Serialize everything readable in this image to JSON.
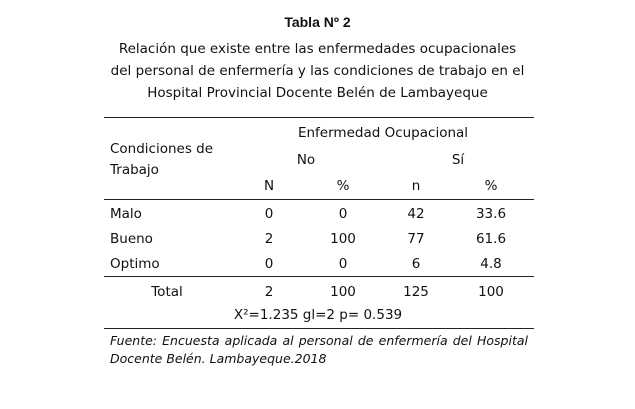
{
  "title": "Tabla Nº 2",
  "caption": [
    "Relación que existe entre las enfermedades ocupacionales",
    "del personal de enfermería y las condiciones de trabajo en el",
    "Hospital Provincial Docente Belén de Lambayeque"
  ],
  "table": {
    "row_header_line1": "Condiciones     de",
    "row_header_line2": "Trabajo",
    "group_header": "Enfermedad Ocupacional",
    "no_label": "No",
    "si_label": "Sí",
    "sub_headers": [
      "N",
      "%",
      "n",
      "%"
    ],
    "rows": [
      {
        "label": "Malo",
        "cells": [
          "0",
          "0",
          "42",
          "33.6"
        ]
      },
      {
        "label": "Bueno",
        "cells": [
          "2",
          "100",
          "77",
          "61.6"
        ]
      },
      {
        "label": "Optimo",
        "cells": [
          "0",
          "0",
          "6",
          "4.8"
        ]
      }
    ],
    "total": {
      "label": "Total",
      "cells": [
        "2",
        "100",
        "125",
        "100"
      ]
    },
    "stat": "X²=1.235 gl=2 p= 0.539"
  },
  "footnote": "Fuente: Encuesta aplicada al personal de enfermería del Hospital Docente Belén. Lambayeque.2018"
}
